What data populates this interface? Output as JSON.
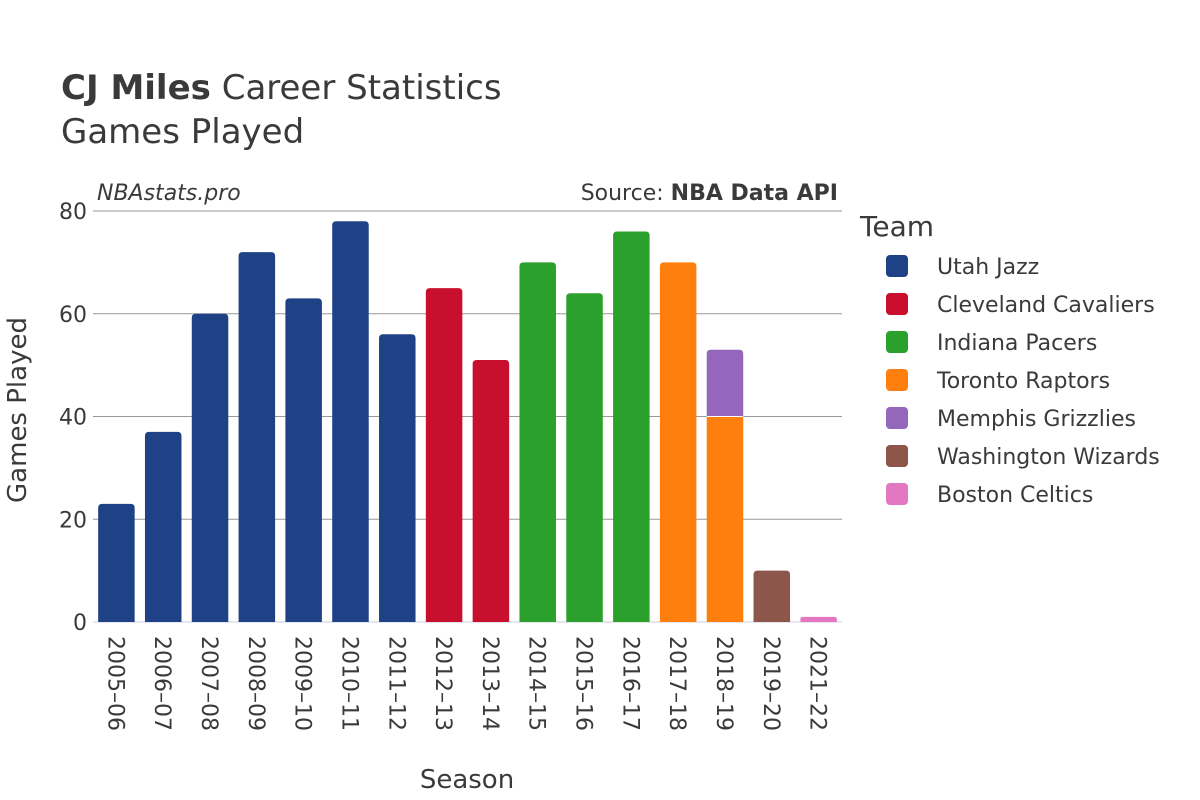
{
  "header": {
    "player": "CJ Miles",
    "title_rest": "Career Statistics",
    "subtitle": "Games Played"
  },
  "watermark": "NBAstats.pro",
  "source": {
    "prefix": "Source: ",
    "name": "NBA Data API"
  },
  "chart_data": {
    "type": "bar",
    "stacked": true,
    "xlabel": "Season",
    "ylabel": "Games Played",
    "ylim": [
      0,
      80
    ],
    "yticks": [
      0,
      20,
      40,
      60,
      80
    ],
    "grid": true,
    "legend_title": "Team",
    "legend_position": "right",
    "categories": [
      "2005–06",
      "2006–07",
      "2007–08",
      "2008–09",
      "2009–10",
      "2010–11",
      "2011–12",
      "2012–13",
      "2013–14",
      "2014–15",
      "2015–16",
      "2016–17",
      "2017–18",
      "2018–19",
      "2019–20",
      "2021–22"
    ],
    "series": [
      {
        "name": "Utah Jazz",
        "color": "#1f4287",
        "values": [
          23,
          37,
          60,
          72,
          63,
          78,
          56,
          0,
          0,
          0,
          0,
          0,
          0,
          0,
          0,
          0
        ]
      },
      {
        "name": "Cleveland Cavaliers",
        "color": "#c8102e",
        "values": [
          0,
          0,
          0,
          0,
          0,
          0,
          0,
          65,
          51,
          0,
          0,
          0,
          0,
          0,
          0,
          0
        ]
      },
      {
        "name": "Indiana Pacers",
        "color": "#2ca02c",
        "values": [
          0,
          0,
          0,
          0,
          0,
          0,
          0,
          0,
          0,
          70,
          64,
          76,
          0,
          0,
          0,
          0
        ]
      },
      {
        "name": "Toronto Raptors",
        "color": "#ff7f0e",
        "values": [
          0,
          0,
          0,
          0,
          0,
          0,
          0,
          0,
          0,
          0,
          0,
          0,
          70,
          40,
          0,
          0
        ]
      },
      {
        "name": "Memphis Grizzlies",
        "color": "#9467bd",
        "values": [
          0,
          0,
          0,
          0,
          0,
          0,
          0,
          0,
          0,
          0,
          0,
          0,
          0,
          13,
          0,
          0
        ]
      },
      {
        "name": "Washington Wizards",
        "color": "#8c564b",
        "values": [
          0,
          0,
          0,
          0,
          0,
          0,
          0,
          0,
          0,
          0,
          0,
          0,
          0,
          0,
          10,
          0
        ]
      },
      {
        "name": "Boston Celtics",
        "color": "#e377c2",
        "values": [
          0,
          0,
          0,
          0,
          0,
          0,
          0,
          0,
          0,
          0,
          0,
          0,
          0,
          0,
          0,
          1
        ]
      }
    ]
  }
}
